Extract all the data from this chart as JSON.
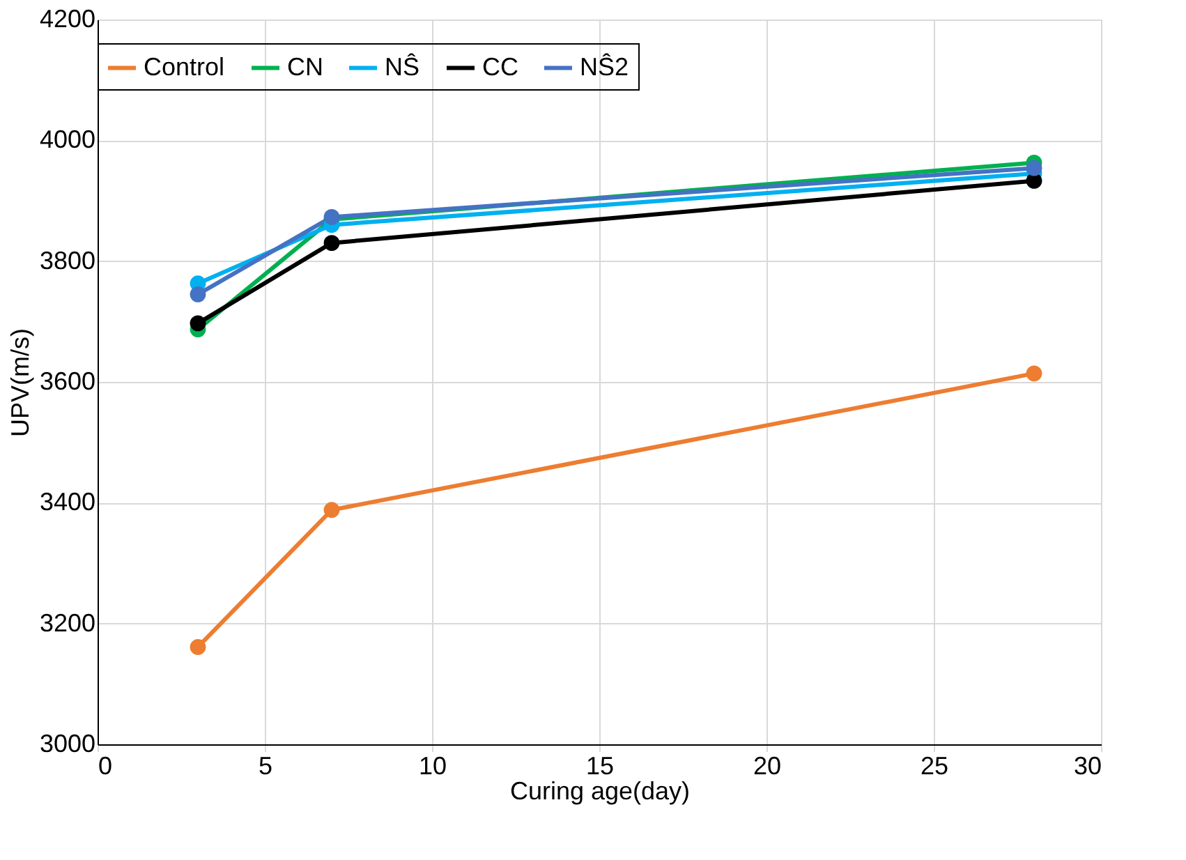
{
  "chart_data": {
    "type": "line",
    "xlabel": "Curing age(day)",
    "ylabel": "UPV(m/s)",
    "x": [
      3,
      7,
      28
    ],
    "series": [
      {
        "name": "Control",
        "color": "#ed7d31",
        "values": [
          3161,
          3388,
          3614
        ]
      },
      {
        "name": "CN",
        "color": "#00b050",
        "values": [
          3687,
          3869,
          3963
        ]
      },
      {
        "name": "NŜ",
        "color": "#00b0f0",
        "values": [
          3763,
          3860,
          3945
        ]
      },
      {
        "name": "CC",
        "color": "#000000",
        "values": [
          3697,
          3830,
          3933
        ]
      },
      {
        "name": "NŜ2",
        "color": "#4472c4",
        "values": [
          3745,
          3873,
          3954
        ]
      }
    ],
    "xlim": [
      0,
      30
    ],
    "xticks": [
      0,
      5,
      10,
      15,
      20,
      25,
      30
    ],
    "ylim": [
      3000,
      4200
    ],
    "yticks": [
      3000,
      3200,
      3400,
      3600,
      3800,
      4000,
      4200
    ],
    "grid": true,
    "legend": "top",
    "marker": "circle",
    "line_style": "solid"
  }
}
